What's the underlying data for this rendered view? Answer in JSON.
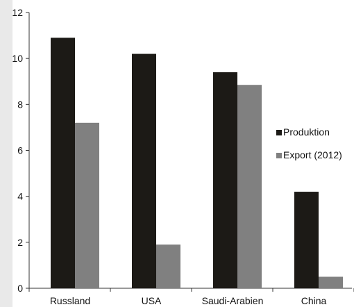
{
  "chart_data": {
    "type": "bar",
    "categories": [
      "Russland",
      "USA",
      "Saudi-Arabien",
      "China"
    ],
    "series": [
      {
        "name": "Produktion",
        "values": [
          10.9,
          10.2,
          9.4,
          4.2
        ],
        "color": "#1c1a16"
      },
      {
        "name": "Export (2012)",
        "values": [
          7.2,
          1.9,
          8.85,
          0.5
        ],
        "color": "#808080"
      }
    ],
    "ylim": [
      0,
      12
    ],
    "yticks": [
      "0",
      "2",
      "4",
      "6",
      "8",
      "10",
      "12"
    ],
    "legend_position": "right",
    "grid": false
  }
}
